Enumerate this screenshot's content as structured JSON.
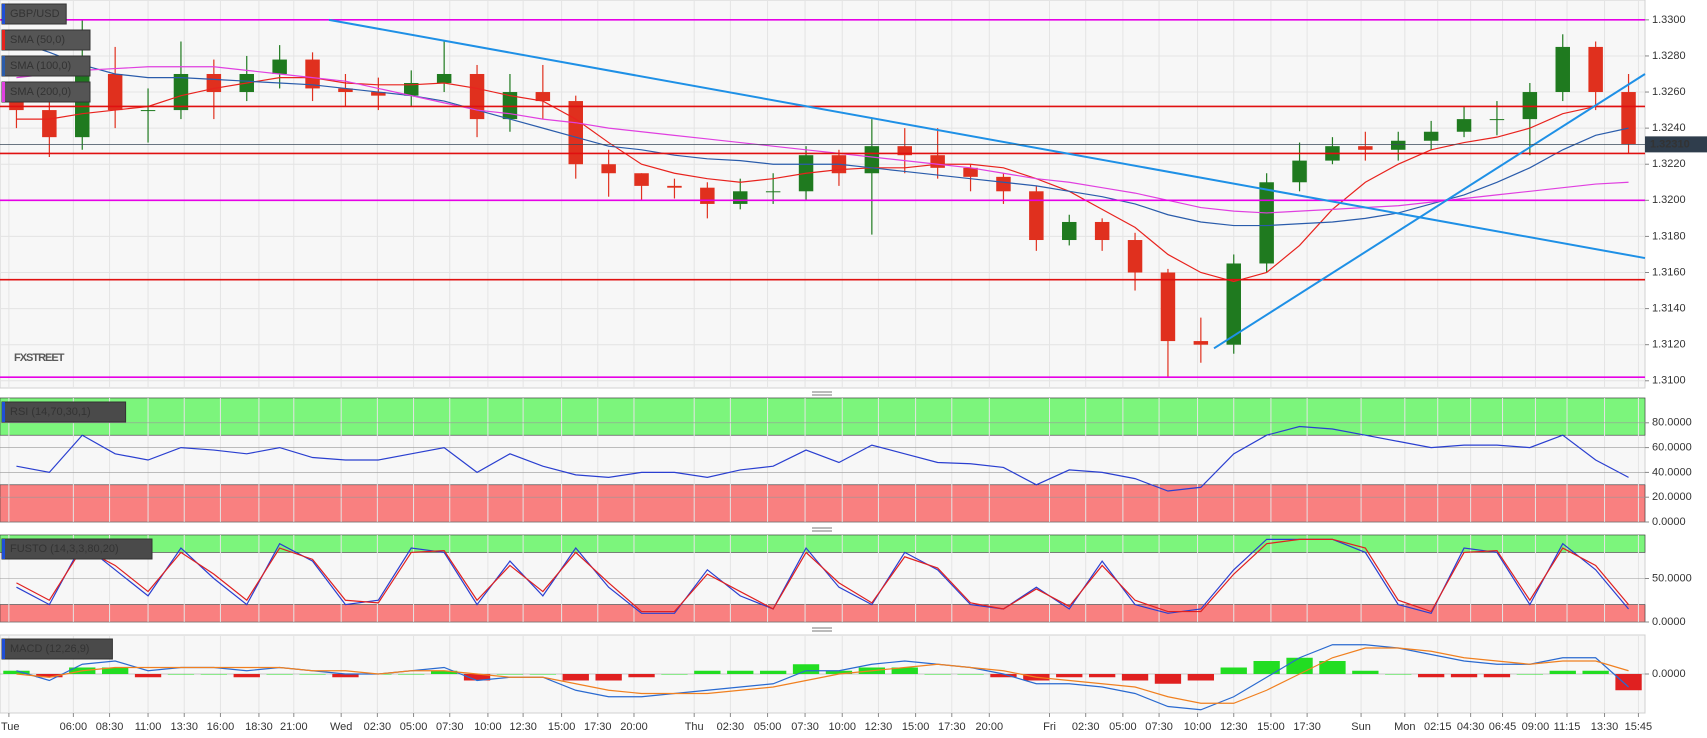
{
  "chart_data": [
    {
      "type": "candlestick",
      "title": "GBP/USD",
      "legend": true,
      "grid": true,
      "watermark": "FXSTREET",
      "up_color": "#1f7a1f",
      "down_color": "#e0301e",
      "open": [
        1.3255,
        1.325,
        1.3235,
        1.327,
        1.325,
        1.325,
        1.327,
        1.326,
        1.327,
        1.3278,
        1.3262,
        1.326,
        1.3258,
        1.3265,
        1.327,
        1.3245,
        1.326,
        1.3255,
        1.322,
        1.3215,
        1.3208,
        1.3207,
        1.3198,
        1.3205,
        1.3205,
        1.3225,
        1.3215,
        1.323,
        1.3225,
        1.3218,
        1.3213,
        1.3205,
        1.3178,
        1.3188,
        1.3178,
        1.316,
        1.3122,
        1.312,
        1.3165,
        1.321,
        1.3222,
        1.323,
        1.3228,
        1.3233,
        1.3238,
        1.3245,
        1.3245,
        1.326,
        1.3285,
        1.326
      ],
      "high": [
        1.3262,
        1.3256,
        1.33,
        1.3285,
        1.3262,
        1.3288,
        1.3278,
        1.328,
        1.3286,
        1.3282,
        1.327,
        1.3268,
        1.3272,
        1.3288,
        1.3275,
        1.327,
        1.3275,
        1.3258,
        1.3228,
        1.3215,
        1.3212,
        1.321,
        1.3212,
        1.3215,
        1.323,
        1.3228,
        1.3245,
        1.324,
        1.324,
        1.322,
        1.3215,
        1.3208,
        1.3192,
        1.319,
        1.3182,
        1.3162,
        1.3135,
        1.317,
        1.3215,
        1.3232,
        1.3235,
        1.3238,
        1.3238,
        1.3244,
        1.3252,
        1.3255,
        1.3265,
        1.3292,
        1.3288,
        1.327
      ],
      "low": [
        1.324,
        1.3224,
        1.3228,
        1.324,
        1.3232,
        1.3245,
        1.3245,
        1.3255,
        1.3262,
        1.3255,
        1.3252,
        1.325,
        1.3252,
        1.326,
        1.3235,
        1.3238,
        1.3245,
        1.3212,
        1.3202,
        1.32,
        1.3201,
        1.319,
        1.3195,
        1.3198,
        1.32,
        1.3208,
        1.3181,
        1.3215,
        1.3212,
        1.3205,
        1.3198,
        1.3172,
        1.3175,
        1.3172,
        1.315,
        1.3102,
        1.311,
        1.3115,
        1.316,
        1.3205,
        1.322,
        1.3222,
        1.3222,
        1.3228,
        1.3235,
        1.3236,
        1.3225,
        1.3255,
        1.325,
        1.3226
      ],
      "close": [
        1.325,
        1.3235,
        1.327,
        1.325,
        1.325,
        1.327,
        1.326,
        1.327,
        1.3278,
        1.3262,
        1.326,
        1.3258,
        1.3265,
        1.327,
        1.3245,
        1.326,
        1.3255,
        1.322,
        1.3215,
        1.3208,
        1.3207,
        1.3198,
        1.3205,
        1.3205,
        1.3225,
        1.3215,
        1.323,
        1.3225,
        1.3218,
        1.3213,
        1.3205,
        1.3178,
        1.3188,
        1.3178,
        1.316,
        1.3122,
        1.312,
        1.3165,
        1.321,
        1.3222,
        1.323,
        1.3228,
        1.3233,
        1.3238,
        1.3245,
        1.3245,
        1.326,
        1.3285,
        1.326,
        1.3231
      ],
      "series": [
        {
          "name": "SMA (50,0)",
          "color": "#e8231e",
          "values": [
            1.3245,
            1.3245,
            1.3248,
            1.325,
            1.3252,
            1.3258,
            1.3262,
            1.3265,
            1.3268,
            1.3268,
            1.3265,
            1.3264,
            1.3264,
            1.3265,
            1.3262,
            1.3258,
            1.3255,
            1.3245,
            1.3232,
            1.322,
            1.3215,
            1.3212,
            1.321,
            1.3212,
            1.3215,
            1.3217,
            1.3218,
            1.3218,
            1.322,
            1.322,
            1.3218,
            1.3212,
            1.3205,
            1.3195,
            1.3185,
            1.317,
            1.316,
            1.3155,
            1.316,
            1.3175,
            1.3195,
            1.321,
            1.322,
            1.3228,
            1.3232,
            1.3235,
            1.324,
            1.3248,
            1.3252,
            1.3252
          ]
        },
        {
          "name": "SMA (100,0)",
          "color": "#2a5cab",
          "values": [
            1.3288,
            1.3282,
            1.3275,
            1.327,
            1.3268,
            1.3268,
            1.3267,
            1.3266,
            1.3265,
            1.3264,
            1.3262,
            1.326,
            1.3258,
            1.3255,
            1.325,
            1.3245,
            1.324,
            1.3235,
            1.323,
            1.3228,
            1.3225,
            1.3223,
            1.3222,
            1.322,
            1.322,
            1.322,
            1.3218,
            1.3216,
            1.3214,
            1.3212,
            1.321,
            1.3208,
            1.3205,
            1.3202,
            1.3198,
            1.3192,
            1.3188,
            1.3186,
            1.3186,
            1.3187,
            1.3188,
            1.319,
            1.3193,
            1.3198,
            1.3203,
            1.321,
            1.3218,
            1.3228,
            1.3236,
            1.324
          ]
        },
        {
          "name": "SMA (200,0)",
          "color": "#e040e0",
          "values": [
            1.3268,
            1.327,
            1.3272,
            1.3273,
            1.3274,
            1.3274,
            1.3274,
            1.3272,
            1.327,
            1.3268,
            1.3266,
            1.3262,
            1.3258,
            1.3254,
            1.325,
            1.3248,
            1.3245,
            1.3243,
            1.324,
            1.3238,
            1.3236,
            1.3234,
            1.3232,
            1.323,
            1.3228,
            1.3226,
            1.3224,
            1.3222,
            1.322,
            1.3218,
            1.3215,
            1.3212,
            1.321,
            1.3207,
            1.3204,
            1.32,
            1.3196,
            1.3194,
            1.3193,
            1.3194,
            1.3195,
            1.3196,
            1.3197,
            1.3199,
            1.3201,
            1.3203,
            1.3205,
            1.3207,
            1.3209,
            1.321
          ]
        }
      ],
      "hlines": [
        {
          "value": 1.33,
          "color": "#e600e6"
        },
        {
          "value": 1.3252,
          "color": "#e01010"
        },
        {
          "value": 1.3226,
          "color": "#e01010"
        },
        {
          "value": 1.32,
          "color": "#e600e6"
        },
        {
          "value": 1.3156,
          "color": "#e01010"
        },
        {
          "value": 1.3102,
          "color": "#e600e6"
        }
      ],
      "trendlines": [
        {
          "x": [
            10,
            50
          ],
          "y": [
            1.33,
            1.3168
          ],
          "color": "#1e90e6"
        },
        {
          "x": [
            36.9,
            50
          ],
          "y": [
            1.3118,
            1.327
          ],
          "color": "#1e90e6"
        }
      ],
      "last": {
        "value": 1.3231,
        "label": "1.32310"
      },
      "xlim": [
        0,
        50
      ],
      "ylim": [
        1.3096,
        1.3311
      ],
      "yticks": [
        {
          "value": 1.31,
          "label": "1.3100"
        },
        {
          "value": 1.312,
          "label": "1.3120"
        },
        {
          "value": 1.314,
          "label": "1.3140"
        },
        {
          "value": 1.316,
          "label": "1.3160"
        },
        {
          "value": 1.318,
          "label": "1.3180"
        },
        {
          "value": 1.32,
          "label": "1.3200"
        },
        {
          "value": 1.322,
          "label": "1.3220"
        },
        {
          "value": 1.324,
          "label": "1.3240"
        },
        {
          "value": 1.326,
          "label": "1.3260"
        },
        {
          "value": 1.328,
          "label": "1.3280"
        },
        {
          "value": 1.33,
          "label": "1.3300"
        }
      ],
      "xticks": [
        {
          "value": 0.27,
          "label": "Tue"
        },
        {
          "value": 2.23,
          "label": "06:00"
        },
        {
          "value": 3.33,
          "label": "08:30"
        },
        {
          "value": 4.5,
          "label": "11:00"
        },
        {
          "value": 5.6,
          "label": "13:30"
        },
        {
          "value": 6.7,
          "label": "16:00"
        },
        {
          "value": 7.87,
          "label": "18:30"
        },
        {
          "value": 8.93,
          "label": "21:00"
        },
        {
          "value": 10.37,
          "label": "Wed"
        },
        {
          "value": 11.47,
          "label": "02:30"
        },
        {
          "value": 12.57,
          "label": "05:00"
        },
        {
          "value": 13.67,
          "label": "07:30"
        },
        {
          "value": 14.83,
          "label": "10:00"
        },
        {
          "value": 15.9,
          "label": "12:30"
        },
        {
          "value": 17.07,
          "label": "15:00"
        },
        {
          "value": 18.17,
          "label": "17:30"
        },
        {
          "value": 19.27,
          "label": "20:00"
        },
        {
          "value": 21.1,
          "label": "Thu"
        },
        {
          "value": 22.2,
          "label": "02:30"
        },
        {
          "value": 23.33,
          "label": "05:00"
        },
        {
          "value": 24.47,
          "label": "07:30"
        },
        {
          "value": 25.6,
          "label": "10:00"
        },
        {
          "value": 26.7,
          "label": "12:30"
        },
        {
          "value": 27.83,
          "label": "15:00"
        },
        {
          "value": 28.93,
          "label": "17:30"
        },
        {
          "value": 30.07,
          "label": "20:00"
        },
        {
          "value": 31.9,
          "label": "Fri"
        },
        {
          "value": 33,
          "label": "02:30"
        },
        {
          "value": 34.13,
          "label": "05:00"
        },
        {
          "value": 35.23,
          "label": "07:30"
        },
        {
          "value": 36.4,
          "label": "10:00"
        },
        {
          "value": 37.5,
          "label": "12:30"
        },
        {
          "value": 38.63,
          "label": "15:00"
        },
        {
          "value": 39.73,
          "label": "17:30"
        },
        {
          "value": 41.37,
          "label": "Sun"
        },
        {
          "value": 42.7,
          "label": "Mon"
        },
        {
          "value": 43.7,
          "label": "02:15"
        },
        {
          "value": 44.7,
          "label": "04:30"
        },
        {
          "value": 45.67,
          "label": "06:45"
        },
        {
          "value": 46.67,
          "label": "09:00"
        },
        {
          "value": 47.63,
          "label": "11:15"
        },
        {
          "value": 48.77,
          "label": "13:30"
        },
        {
          "value": 49.8,
          "label": "15:45"
        }
      ]
    },
    {
      "type": "line",
      "title": "RSI (14,70,30,1)",
      "grid": true,
      "bands": [
        {
          "from": 70,
          "to": 100,
          "color": "#7cf57c"
        },
        {
          "from": 0,
          "to": 30,
          "color": "#f98080"
        }
      ],
      "series": [
        {
          "color": "#2a3fd0",
          "values": [
            45,
            40,
            70,
            55,
            50,
            60,
            58,
            55,
            60,
            52,
            50,
            50,
            55,
            60,
            40,
            55,
            45,
            38,
            36,
            40,
            40,
            36,
            42,
            45,
            58,
            48,
            62,
            55,
            48,
            47,
            44,
            30,
            42,
            40,
            35,
            25,
            28,
            55,
            70,
            77,
            75,
            70,
            65,
            60,
            62,
            62,
            60,
            70,
            50,
            36
          ]
        }
      ],
      "ylim": [
        0,
        100
      ],
      "yticks": [
        {
          "value": 0,
          "label": "0.0000"
        },
        {
          "value": 20,
          "label": "20.0000"
        },
        {
          "value": 40,
          "label": "40.0000"
        },
        {
          "value": 60,
          "label": "60.0000"
        },
        {
          "value": 80,
          "label": "80.0000"
        }
      ]
    },
    {
      "type": "line",
      "title": "FUSTO (14,3,3,80,20)",
      "grid": true,
      "bands": [
        {
          "from": 80,
          "to": 100,
          "color": "#7cf57c"
        },
        {
          "from": 0,
          "to": 20,
          "color": "#f98080"
        }
      ],
      "series": [
        {
          "color": "#2a3fd0",
          "values": [
            40,
            20,
            90,
            60,
            30,
            85,
            50,
            20,
            90,
            70,
            20,
            25,
            85,
            80,
            20,
            70,
            30,
            85,
            40,
            10,
            10,
            60,
            30,
            15,
            85,
            40,
            20,
            80,
            60,
            20,
            15,
            40,
            15,
            70,
            20,
            10,
            15,
            60,
            95,
            95,
            95,
            80,
            20,
            10,
            85,
            80,
            20,
            90,
            60,
            15
          ]
        },
        {
          "color": "#e02020",
          "values": [
            45,
            25,
            85,
            65,
            35,
            80,
            55,
            25,
            85,
            72,
            25,
            22,
            80,
            82,
            25,
            65,
            35,
            80,
            45,
            12,
            12,
            55,
            35,
            15,
            80,
            45,
            22,
            75,
            62,
            22,
            15,
            38,
            18,
            65,
            25,
            12,
            12,
            55,
            90,
            95,
            95,
            85,
            25,
            12,
            80,
            82,
            25,
            85,
            65,
            20
          ]
        }
      ],
      "ylim": [
        0,
        100
      ],
      "yticks": [
        {
          "value": 0,
          "label": "0.0000"
        },
        {
          "value": 50,
          "label": "50.0000"
        }
      ]
    },
    {
      "type": "combo",
      "title": "MACD (12,26,9)",
      "grid": true,
      "up_color": "#22dd22",
      "down_color": "#e02020",
      "histogram": [
        0.0001,
        -0.0001,
        0.0002,
        0.0002,
        -0.0001,
        0,
        0,
        -0.0001,
        0,
        0,
        -0.0001,
        0,
        0,
        0.0001,
        -0.0002,
        0,
        0,
        -0.0002,
        -0.0002,
        -0.0001,
        0,
        0.0001,
        0.0001,
        0.0001,
        0.0003,
        0.0001,
        0.0002,
        0.0002,
        0,
        0,
        -0.0001,
        -0.0002,
        -0.0001,
        -0.0001,
        -0.0002,
        -0.0003,
        -0.0002,
        0.0002,
        0.0004,
        0.0005,
        0.0004,
        0.0001,
        0,
        -0.0001,
        -0.0001,
        -0.0001,
        0,
        0.0001,
        0.0001,
        -0.0005
      ],
      "series": [
        {
          "color": "#2a6ad0",
          "values": [
            0.0001,
            -0.0002,
            0.0003,
            0.0004,
            0.0001,
            0.0002,
            0.0002,
            0.0001,
            0.0002,
            0.0001,
            0,
            0,
            0.0001,
            0.0002,
            -0.0002,
            -0.0001,
            -0.0001,
            -0.0005,
            -0.0007,
            -0.0007,
            -0.0006,
            -0.0005,
            -0.0004,
            -0.0003,
            0.0001,
            0.0001,
            0.0003,
            0.0004,
            0.0003,
            0.0002,
            0,
            -0.0003,
            -0.0003,
            -0.0004,
            -0.0006,
            -0.001,
            -0.0011,
            -0.0007,
            -0.0001,
            0.0005,
            0.0009,
            0.0009,
            0.0008,
            0.0006,
            0.0004,
            0.0003,
            0.0003,
            0.0005,
            0.0005,
            -0.0004
          ]
        },
        {
          "color": "#f08020",
          "values": [
            0,
            -0.0001,
            0.0001,
            0.0002,
            0.0002,
            0.0002,
            0.0002,
            0.0002,
            0.0002,
            0.0001,
            0.0001,
            0,
            0.0001,
            0.0001,
            0,
            -0.0001,
            -0.0001,
            -0.0003,
            -0.0005,
            -0.0006,
            -0.0006,
            -0.0006,
            -0.0005,
            -0.0004,
            -0.0002,
            0,
            0.0001,
            0.0002,
            0.0003,
            0.0002,
            0.0001,
            -0.0001,
            -0.0002,
            -0.0003,
            -0.0004,
            -0.0007,
            -0.0009,
            -0.0009,
            -0.0005,
            0,
            0.0005,
            0.0008,
            0.0008,
            0.0007,
            0.0005,
            0.0004,
            0.0003,
            0.0004,
            0.0004,
            0.0001
          ]
        }
      ],
      "ylim": [
        -0.0012,
        0.0012
      ],
      "yticks": [
        {
          "value": 0,
          "label": "0.0000"
        }
      ]
    }
  ]
}
